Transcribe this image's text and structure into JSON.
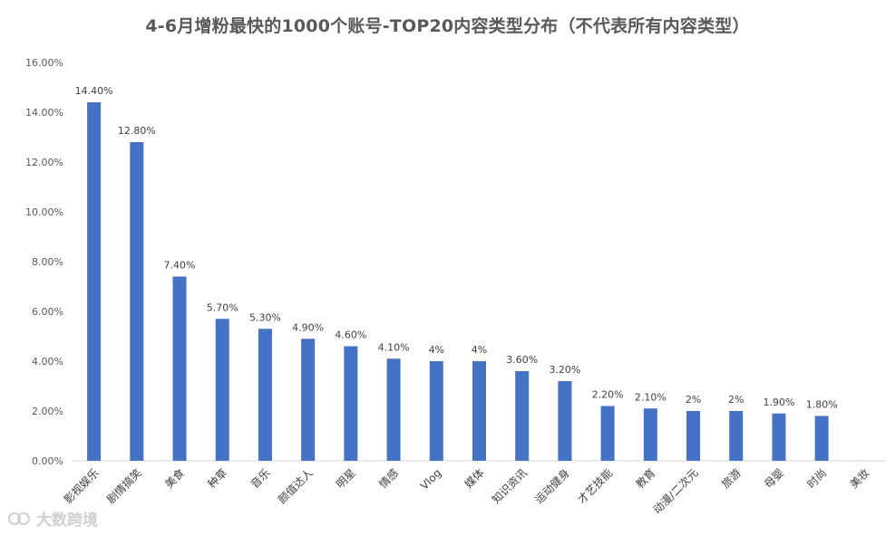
{
  "chart_data": {
    "type": "bar",
    "title": "4-6月增粉最快的1000个账号-TOP20内容类型分布（不代表所有内容类型）",
    "categories": [
      "影视娱乐",
      "剧情搞笑",
      "美食",
      "种草",
      "音乐",
      "颜值达人",
      "明星",
      "情感",
      "Vlog",
      "媒体",
      "知识资讯",
      "运动健身",
      "才艺技能",
      "教育",
      "动漫/二次元",
      "旅游",
      "母婴",
      "时尚",
      "美妆"
    ],
    "values": [
      14.4,
      12.8,
      7.4,
      5.7,
      5.3,
      4.9,
      4.6,
      4.1,
      4.0,
      4.0,
      3.6,
      3.2,
      2.2,
      2.1,
      2.0,
      2.0,
      1.9,
      1.8,
      null
    ],
    "data_labels": [
      "14.40%",
      "12.80%",
      "7.40%",
      "5.70%",
      "5.30%",
      "4.90%",
      "4.60%",
      "4.10%",
      "4%",
      "4%",
      "3.60%",
      "3.20%",
      "2.20%",
      "2.10%",
      "2%",
      "2%",
      "1.90%",
      "1.80%",
      ""
    ],
    "y_ticks": [
      "0.00%",
      "2.00%",
      "4.00%",
      "6.00%",
      "8.00%",
      "10.00%",
      "12.00%",
      "14.00%",
      "16.00%"
    ],
    "ylim": [
      0,
      16
    ],
    "xlabel": "",
    "ylabel": "",
    "grid": false,
    "bar_color": "#4472C4"
  },
  "watermark": {
    "text": "大数跨境"
  }
}
